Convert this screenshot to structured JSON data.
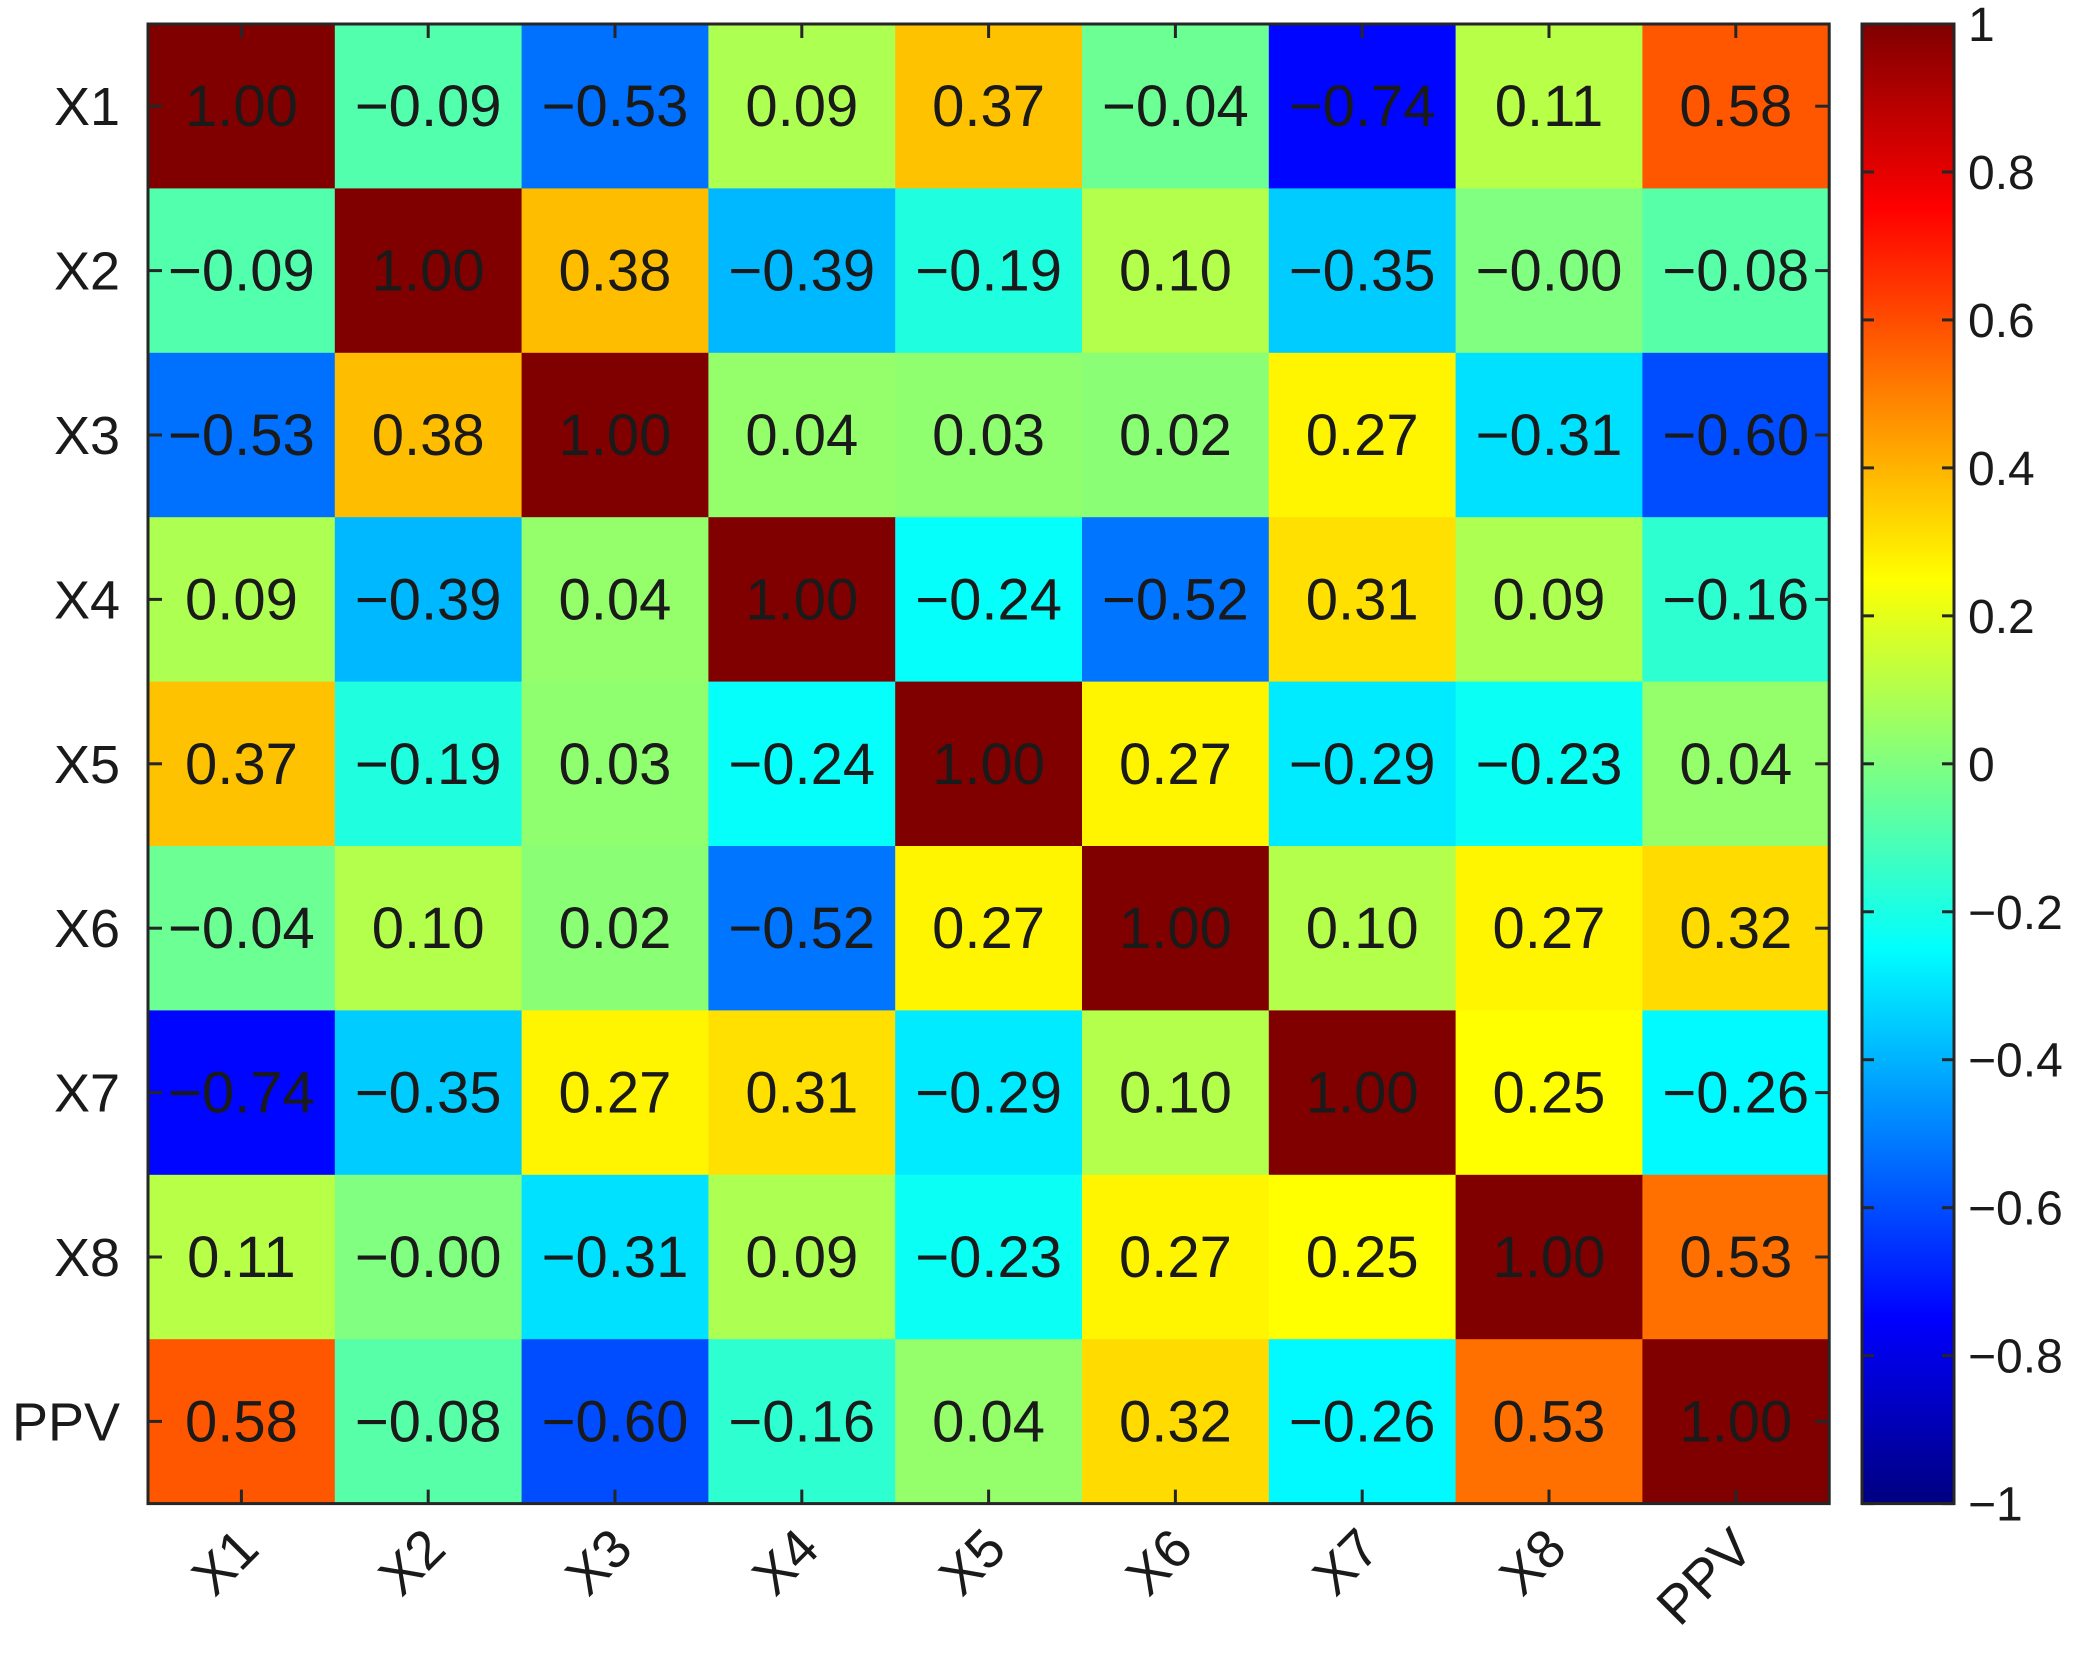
{
  "chart_data": {
    "type": "heatmap",
    "x_labels": [
      "X1",
      "X2",
      "X3",
      "X4",
      "X5",
      "X6",
      "X7",
      "X8",
      "PPV"
    ],
    "y_labels": [
      "X1",
      "X2",
      "X3",
      "X4",
      "X5",
      "X6",
      "X7",
      "X8",
      "PPV"
    ],
    "values": [
      [
        1.0,
        -0.09,
        -0.53,
        0.09,
        0.37,
        -0.04,
        -0.74,
        0.11,
        0.58
      ],
      [
        -0.09,
        1.0,
        0.38,
        -0.39,
        -0.19,
        0.1,
        -0.35,
        -0.0,
        -0.08
      ],
      [
        -0.53,
        0.38,
        1.0,
        0.04,
        0.03,
        0.02,
        0.27,
        -0.31,
        -0.6
      ],
      [
        0.09,
        -0.39,
        0.04,
        1.0,
        -0.24,
        -0.52,
        0.31,
        0.09,
        -0.16
      ],
      [
        0.37,
        -0.19,
        0.03,
        -0.24,
        1.0,
        0.27,
        -0.29,
        -0.23,
        0.04
      ],
      [
        -0.04,
        0.1,
        0.02,
        -0.52,
        0.27,
        1.0,
        0.1,
        0.27,
        0.32
      ],
      [
        -0.74,
        -0.35,
        0.27,
        0.31,
        -0.29,
        0.1,
        1.0,
        0.25,
        -0.26
      ],
      [
        0.11,
        -0.0,
        -0.31,
        0.09,
        -0.23,
        0.27,
        0.25,
        1.0,
        0.53
      ],
      [
        0.58,
        -0.08,
        -0.6,
        -0.16,
        0.04,
        0.32,
        -0.26,
        0.53,
        1.0
      ]
    ],
    "value_labels": [
      [
        "1.00",
        "−0.09",
        "−0.53",
        "0.09",
        "0.37",
        "−0.04",
        "−0.74",
        "0.11",
        "0.58"
      ],
      [
        "−0.09",
        "1.00",
        "0.38",
        "−0.39",
        "−0.19",
        "0.10",
        "−0.35",
        "−0.00",
        "−0.08"
      ],
      [
        "−0.53",
        "0.38",
        "1.00",
        "0.04",
        "0.03",
        "0.02",
        "0.27",
        "−0.31",
        "−0.60"
      ],
      [
        "0.09",
        "−0.39",
        "0.04",
        "1.00",
        "−0.24",
        "−0.52",
        "0.31",
        "0.09",
        "−0.16"
      ],
      [
        "0.37",
        "−0.19",
        "0.03",
        "−0.24",
        "1.00",
        "0.27",
        "−0.29",
        "−0.23",
        "0.04"
      ],
      [
        "−0.04",
        "0.10",
        "0.02",
        "−0.52",
        "0.27",
        "1.00",
        "0.10",
        "0.27",
        "0.32"
      ],
      [
        "−0.74",
        "−0.35",
        "0.27",
        "0.31",
        "−0.29",
        "0.10",
        "1.00",
        "0.25",
        "−0.26"
      ],
      [
        "0.11",
        "−0.00",
        "−0.31",
        "0.09",
        "−0.23",
        "0.27",
        "0.25",
        "1.00",
        "0.53"
      ],
      [
        "0.58",
        "−0.08",
        "−0.60",
        "−0.16",
        "0.04",
        "0.32",
        "−0.26",
        "0.53",
        "1.00"
      ]
    ],
    "colormap": "jet",
    "clim": [
      -1,
      1
    ],
    "colorbar": {
      "placement": "right",
      "ticks": [
        1,
        0.8,
        0.6,
        0.4,
        0.2,
        0,
        -0.2,
        -0.4,
        -0.6,
        -0.8,
        -1
      ],
      "tick_labels": [
        "1",
        "0.8",
        "0.6",
        "0.4",
        "0.2",
        "0",
        "−0.2",
        "−0.4",
        "−0.6",
        "−0.8",
        "−1"
      ]
    },
    "title": "",
    "xlabel": "",
    "ylabel": "",
    "grid": false
  }
}
